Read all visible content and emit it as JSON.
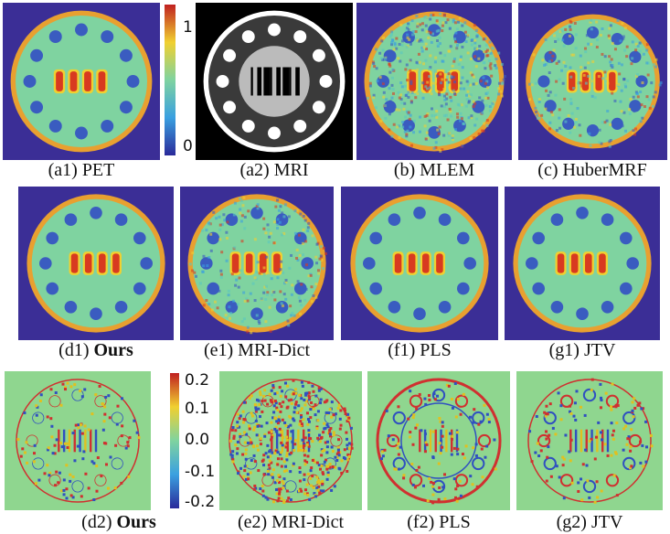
{
  "panels": [
    {
      "tag": "(a1)",
      "name": "PET"
    },
    {
      "tag": "(a2)",
      "name": "MRI"
    },
    {
      "tag": "(b)",
      "name": "MLEM"
    },
    {
      "tag": "(c)",
      "name": "HuberMRF"
    },
    {
      "tag": "(d1)",
      "name": "Ours"
    },
    {
      "tag": "(e1)",
      "name": "MRI-Dict"
    },
    {
      "tag": "(f1)",
      "name": "PLS"
    },
    {
      "tag": "(g1)",
      "name": "JTV"
    },
    {
      "tag": "(d2)",
      "name": "Ours"
    },
    {
      "tag": "(e2)",
      "name": "MRI-Dict"
    },
    {
      "tag": "(f2)",
      "name": "PLS"
    },
    {
      "tag": "(g2)",
      "name": "JTV"
    }
  ],
  "colorbars": [
    {
      "ticks": [
        "1",
        "0"
      ]
    },
    {
      "ticks": [
        "0.2",
        "0.1",
        "0.0",
        "-0.1",
        "-0.2"
      ]
    }
  ]
}
